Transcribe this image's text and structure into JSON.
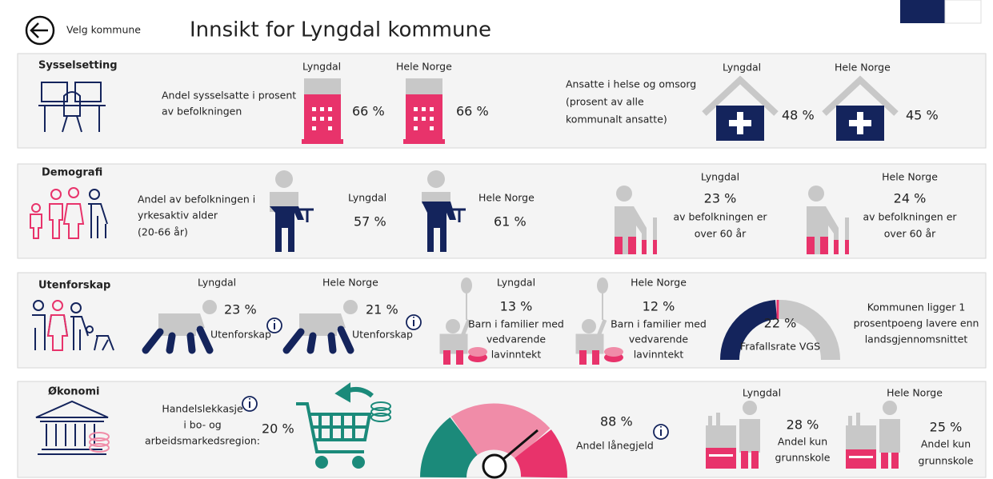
{
  "header": {
    "back_label": "Velg kommune",
    "title": "Innsikt for Lyngdal kommune"
  },
  "sysselsetting": {
    "title": "Sysselsetting",
    "employment": {
      "label": [
        "Andel sysselsatte i prosent",
        "av befolkningen"
      ],
      "lyngdal": {
        "name": "Lyngdal",
        "value": "66 %"
      },
      "norge": {
        "name": "Hele Norge",
        "value": "66 %"
      }
    },
    "health": {
      "label": [
        "Ansatte i helse og omsorg",
        "(prosent av alle",
        "kommunalt ansatte)"
      ],
      "lyngdal": {
        "name": "Lyngdal",
        "value": "48 %"
      },
      "norge": {
        "name": "Hele Norge",
        "value": "45 %"
      }
    }
  },
  "demografi": {
    "title": "Demografi",
    "working_age": {
      "label": [
        "Andel av befolkningen i",
        "yrkesaktiv alder",
        "(20-66 år)"
      ],
      "lyngdal": {
        "name": "Lyngdal",
        "value": "57 %"
      },
      "norge": {
        "name": "Hele Norge",
        "value": "61 %"
      }
    },
    "over_60": {
      "lyngdal": {
        "name": "Lyngdal",
        "value": "23 %",
        "text": [
          "av befolkningen er",
          "over 60 år"
        ]
      },
      "norge": {
        "name": "Hele Norge",
        "value": "24 %",
        "text": [
          "av befolkningen er",
          "over 60 år"
        ]
      }
    }
  },
  "utenforskap": {
    "title": "Utenforskap",
    "outside": {
      "lyngdal": {
        "name": "Lyngdal",
        "value": "23 %",
        "text": "Utenforskap"
      },
      "norge": {
        "name": "Hele Norge",
        "value": "21 %",
        "text": "Utenforskap"
      }
    },
    "child_poverty": {
      "lyngdal": {
        "name": "Lyngdal",
        "value": "13 %",
        "text": [
          "Barn i familier med",
          "vedvarende",
          "lavinntekt"
        ]
      },
      "norge": {
        "name": "Hele Norge",
        "value": "12 %",
        "text": [
          "Barn i familier med",
          "vedvarende",
          "lavinntekt"
        ]
      }
    },
    "dropout": {
      "value": "22 %",
      "label": "Frafallsrate VGS"
    },
    "comment": [
      "Kommunen ligger 1",
      "prosentpoeng lavere enn",
      "landsgjennomsnittet"
    ]
  },
  "okonomi": {
    "title": "Økonomi",
    "trade_leakage": {
      "label": [
        "Handelslekkasje",
        "i bo- og",
        "arbeidsmarkedsregion:"
      ],
      "value": "20 %"
    },
    "debt": {
      "value": "88 %",
      "label": "Andel lånegjeld"
    },
    "primary_school": {
      "lyngdal": {
        "name": "Lyngdal",
        "value": "28 %",
        "text": [
          "Andel kun",
          "grunnskole"
        ]
      },
      "norge": {
        "name": "Hele Norge",
        "value": "25 %",
        "text": [
          "Andel kun",
          "grunnskole"
        ]
      }
    }
  }
}
